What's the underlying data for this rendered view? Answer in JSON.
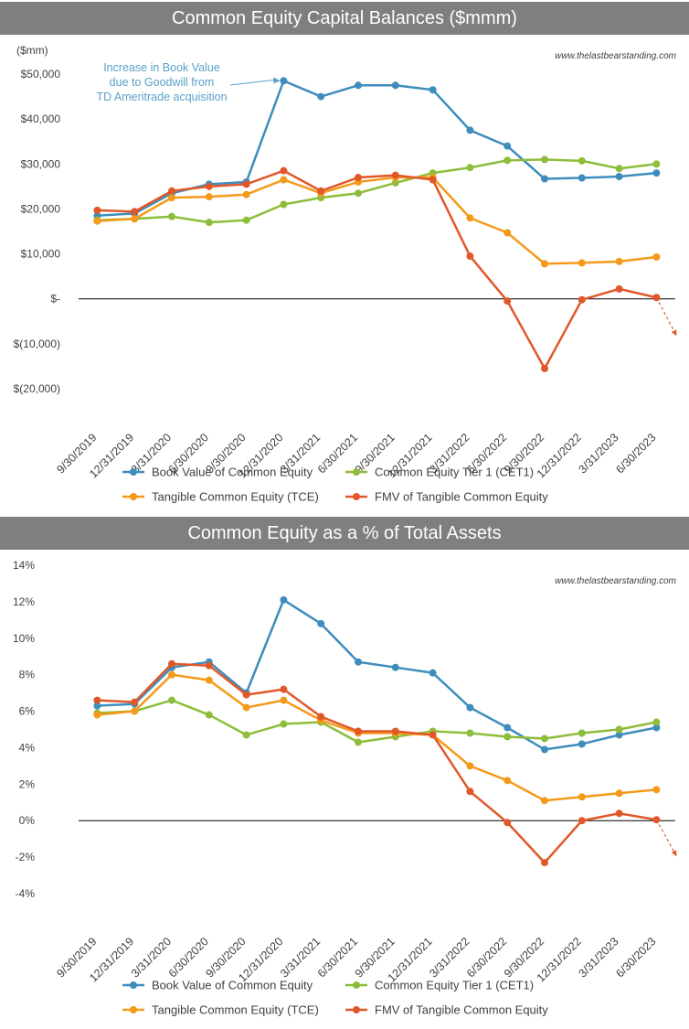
{
  "colors": {
    "book_value": "#3e8dbd",
    "cet1": "#8dbd3a",
    "tce": "#f49a1a",
    "fmv_tce": "#e0582a",
    "title_bar": "#7f7f7f",
    "annotation": "#5aa0c8"
  },
  "charts": [
    {
      "title": "Common Equity Capital Balances ($mmm)",
      "watermark": "www.thelastbearstanding.com",
      "unit_label": "($mm)",
      "annotation": [
        "Increase in Book Value",
        "due to Goodwill from",
        "TD Ameritrade acquisition"
      ]
    },
    {
      "title": "Common Equity as a % of Total Assets",
      "watermark": "www.thelastbearstanding.com"
    }
  ],
  "chart_data": [
    {
      "type": "line",
      "title": "Common Equity Capital Balances ($mmm)",
      "ylabel": "($mm)",
      "ylim": [
        -20000,
        50000
      ],
      "yticks": [
        -20000,
        -10000,
        0,
        10000,
        20000,
        30000,
        40000,
        50000
      ],
      "ytick_labels": [
        "$(20,000)",
        "$(10,000)",
        "$-",
        "$10,000",
        "$20,000",
        "$30,000",
        "$40,000",
        "$50,000"
      ],
      "grid": false,
      "legend": "bottom",
      "categories": [
        "9/30/2019",
        "12/31/2019",
        "3/31/2020",
        "6/30/2020",
        "9/30/2020",
        "12/31/2020",
        "3/31/2021",
        "6/30/2021",
        "9/30/2021",
        "12/31/2021",
        "3/31/2022",
        "6/30/2022",
        "9/30/2022",
        "12/31/2022",
        "3/31/2023",
        "6/30/2023"
      ],
      "series": [
        {
          "name": "Book Value of Common Equity",
          "values": [
            18500,
            19000,
            23500,
            25500,
            26000,
            48500,
            45000,
            47500,
            47500,
            46500,
            37500,
            34000,
            26700,
            26900,
            27200,
            28000
          ]
        },
        {
          "name": "Common Equity Tier 1 (CET1)",
          "values": [
            17500,
            17800,
            18300,
            17000,
            17500,
            21000,
            22500,
            23500,
            25800,
            28000,
            29200,
            30800,
            31000,
            30700,
            29000,
            30000
          ]
        },
        {
          "name": "Tangible Common Equity (TCE)",
          "values": [
            17300,
            17800,
            22500,
            22700,
            23200,
            26500,
            23500,
            26000,
            27000,
            27000,
            18000,
            14700,
            7800,
            8000,
            8300,
            9300
          ]
        },
        {
          "name": "FMV of Tangible Common Equity",
          "values": [
            19700,
            19400,
            24000,
            25000,
            25500,
            28500,
            24000,
            27000,
            27500,
            26500,
            9500,
            -500,
            -15500,
            -200,
            2200,
            300
          ]
        }
      ],
      "annotation": "Increase in Book Value due to Goodwill from TD Ameritrade acquisition"
    },
    {
      "type": "line",
      "title": "Common Equity as a % of Total Assets",
      "ylim": [
        -4,
        14
      ],
      "yticks": [
        -4,
        -2,
        0,
        2,
        4,
        6,
        8,
        10,
        12,
        14
      ],
      "ytick_labels": [
        "-4%",
        "-2%",
        "0%",
        "2%",
        "4%",
        "6%",
        "8%",
        "10%",
        "12%",
        "14%"
      ],
      "grid": false,
      "legend": "bottom",
      "categories": [
        "9/30/2019",
        "12/31/2019",
        "3/31/2020",
        "6/30/2020",
        "9/30/2020",
        "12/31/2020",
        "3/31/2021",
        "6/30/2021",
        "9/30/2021",
        "12/31/2021",
        "3/31/2022",
        "6/30/2022",
        "9/30/2022",
        "12/31/2022",
        "3/31/2023",
        "6/30/2023"
      ],
      "series": [
        {
          "name": "Book Value of Common Equity",
          "values": [
            6.3,
            6.4,
            8.4,
            8.7,
            7.0,
            12.1,
            10.8,
            8.7,
            8.4,
            8.1,
            6.2,
            5.1,
            3.9,
            4.2,
            4.7,
            5.1
          ]
        },
        {
          "name": "Common Equity Tier 1 (CET1)",
          "values": [
            5.9,
            6.0,
            6.6,
            5.8,
            4.7,
            5.3,
            5.4,
            4.3,
            4.6,
            4.9,
            4.8,
            4.6,
            4.5,
            4.8,
            5.0,
            5.4
          ]
        },
        {
          "name": "Tangible Common Equity (TCE)",
          "values": [
            5.8,
            6.0,
            8.0,
            7.7,
            6.2,
            6.6,
            5.5,
            4.8,
            4.8,
            4.7,
            3.0,
            2.2,
            1.1,
            1.3,
            1.5,
            1.7
          ]
        },
        {
          "name": "FMV of Tangible Common Equity",
          "values": [
            6.6,
            6.5,
            8.6,
            8.5,
            6.9,
            7.2,
            5.7,
            4.9,
            4.9,
            4.7,
            1.6,
            -0.1,
            -2.3,
            0.0,
            0.4,
            0.05
          ]
        }
      ]
    }
  ]
}
